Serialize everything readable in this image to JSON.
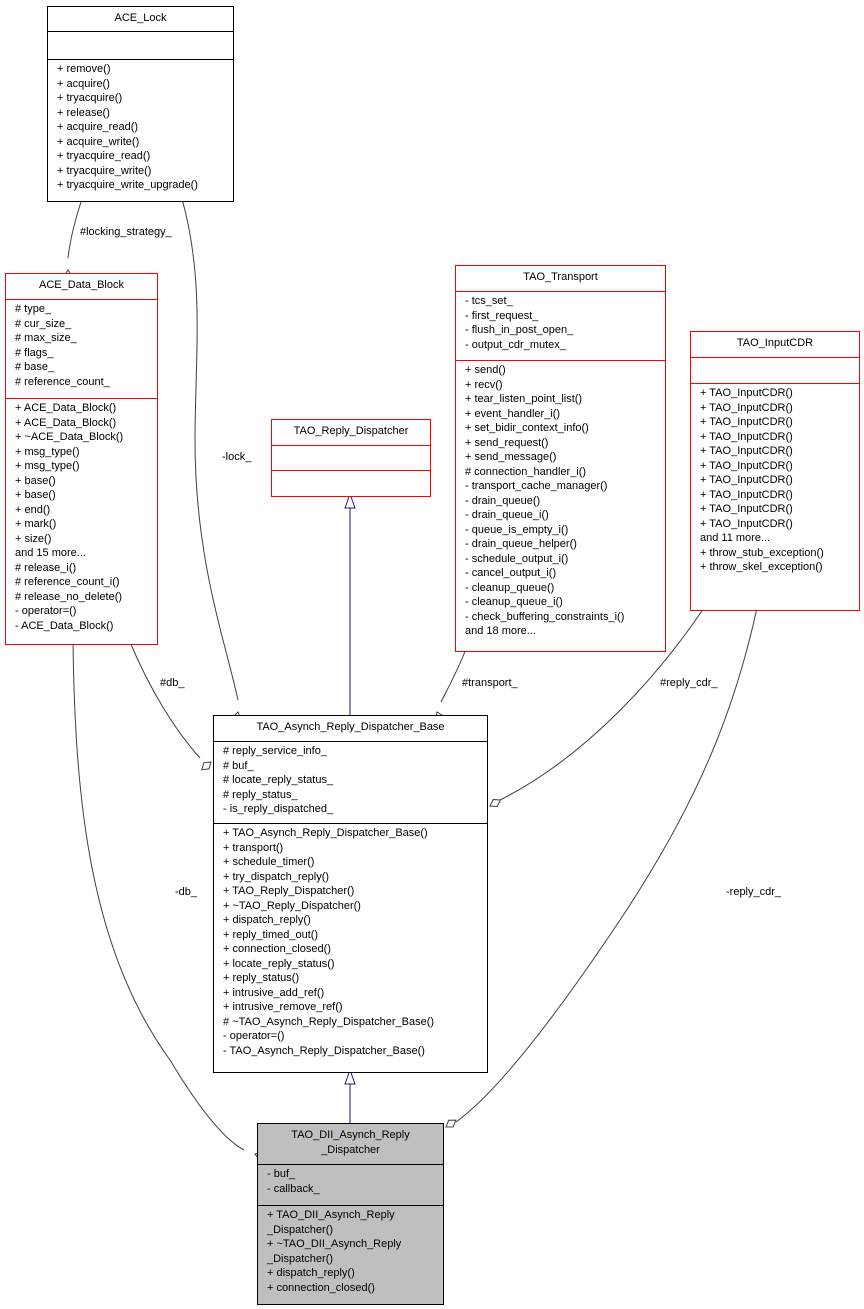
{
  "classes": [
    {
      "id": "ace_lock",
      "title": [
        "ACE_Lock"
      ],
      "border": "#000000",
      "attributes": [],
      "methods": [
        "+ remove()",
        "+ acquire()",
        "+ tryacquire()",
        "+ release()",
        "+ acquire_read()",
        "+ acquire_write()",
        "+ tryacquire_read()",
        "+ tryacquire_write()",
        "+ tryacquire_write_upgrade()"
      ]
    },
    {
      "id": "ace_data_block",
      "title": [
        "ACE_Data_Block"
      ],
      "border": "#ff0000",
      "attributes": [
        "# type_",
        "# cur_size_",
        "# max_size_",
        "# flags_",
        "# base_",
        "# reference_count_"
      ],
      "methods": [
        "+ ACE_Data_Block()",
        "+ ACE_Data_Block()",
        "+ ~ACE_Data_Block()",
        "+ msg_type()",
        "+ msg_type()",
        "+ base()",
        "+ base()",
        "+ end()",
        "+ mark()",
        "+ size()",
        "and 15 more...",
        "# release_i()",
        "# reference_count_i()",
        "# release_no_delete()",
        "- operator=()",
        "- ACE_Data_Block()"
      ]
    },
    {
      "id": "tao_reply_dispatcher",
      "title": [
        "TAO_Reply_Dispatcher"
      ],
      "border": "#ff0000",
      "attributes": [],
      "methods": []
    },
    {
      "id": "tao_transport",
      "title": [
        "TAO_Transport"
      ],
      "border": "#ff0000",
      "attributes": [
        "- tcs_set_",
        "- first_request_",
        "- flush_in_post_open_",
        "- output_cdr_mutex_"
      ],
      "methods": [
        "+ send()",
        "+ recv()",
        "+ tear_listen_point_list()",
        "+ event_handler_i()",
        "+ set_bidir_context_info()",
        "+ send_request()",
        "+ send_message()",
        "# connection_handler_i()",
        "- transport_cache_manager()",
        "- drain_queue()",
        "- drain_queue_i()",
        "- queue_is_empty_i()",
        "- drain_queue_helper()",
        "- schedule_output_i()",
        "- cancel_output_i()",
        "- cleanup_queue()",
        "- cleanup_queue_i()",
        "- check_buffering_constraints_i()",
        "and 18 more..."
      ]
    },
    {
      "id": "tao_inputcdr",
      "title": [
        "TAO_InputCDR"
      ],
      "border": "#ff0000",
      "attributes": [],
      "methods": [
        "+ TAO_InputCDR()",
        "+ TAO_InputCDR()",
        "+ TAO_InputCDR()",
        "+ TAO_InputCDR()",
        "+ TAO_InputCDR()",
        "+ TAO_InputCDR()",
        "+ TAO_InputCDR()",
        "+ TAO_InputCDR()",
        "+ TAO_InputCDR()",
        "+ TAO_InputCDR()",
        "and 11 more...",
        "+ throw_stub_exception()",
        "+ throw_skel_exception()"
      ]
    },
    {
      "id": "tao_asynch_reply_dispatcher_base",
      "title": [
        "TAO_Asynch_Reply_Dispatcher_Base"
      ],
      "border": "#000000",
      "attributes": [
        "# reply_service_info_",
        "# buf_",
        "# locate_reply_status_",
        "# reply_status_",
        "- is_reply_dispatched_"
      ],
      "methods": [
        "+ TAO_Asynch_Reply_Dispatcher_Base()",
        "+ transport()",
        "+ schedule_timer()",
        "+ try_dispatch_reply()",
        "+ TAO_Reply_Dispatcher()",
        "+ ~TAO_Reply_Dispatcher()",
        "+ dispatch_reply()",
        "+ reply_timed_out()",
        "+ connection_closed()",
        "+ locate_reply_status()",
        "+ reply_status()",
        "+ intrusive_add_ref()",
        "+ intrusive_remove_ref()",
        "# ~TAO_Asynch_Reply_Dispatcher_Base()",
        "- operator=()",
        "- TAO_Asynch_Reply_Dispatcher_Base()"
      ]
    },
    {
      "id": "tao_dii_asynch_reply_dispatcher",
      "title": [
        "TAO_DII_Asynch_Reply",
        "_Dispatcher"
      ],
      "border": "#000000",
      "fill": "#bfbfbf",
      "attributes": [
        "- buf_",
        "- callback_"
      ],
      "methods": [
        "+ TAO_DII_Asynch_Reply",
        "_Dispatcher()",
        "+ ~TAO_DII_Asynch_Reply",
        "_Dispatcher()",
        "+ dispatch_reply()",
        "+ connection_closed()"
      ]
    }
  ],
  "edges": [
    {
      "id": "locking-strategy",
      "type": "composition",
      "from": "ace_lock",
      "to": "ace_data_block",
      "label": "#locking_strategy_"
    },
    {
      "id": "lock",
      "type": "composition",
      "from": "ace_lock",
      "to": "tao_asynch_reply_dispatcher_base",
      "label": "-lock_"
    },
    {
      "id": "inherit-reply-dispatcher",
      "type": "inheritance",
      "from": "tao_reply_dispatcher",
      "to": "tao_asynch_reply_dispatcher_base",
      "label": ""
    },
    {
      "id": "db-base",
      "type": "composition",
      "from": "ace_data_block",
      "to": "tao_asynch_reply_dispatcher_base",
      "label": "#db_"
    },
    {
      "id": "transport",
      "type": "composition",
      "from": "tao_transport",
      "to": "tao_asynch_reply_dispatcher_base",
      "label": "#transport_"
    },
    {
      "id": "reply-cdr-base",
      "type": "composition",
      "from": "tao_inputcdr",
      "to": "tao_asynch_reply_dispatcher_base",
      "label": "#reply_cdr_"
    },
    {
      "id": "db-dii",
      "type": "composition",
      "from": "ace_data_block",
      "to": "tao_dii_asynch_reply_dispatcher",
      "label": "-db_"
    },
    {
      "id": "reply-cdr-dii",
      "type": "composition",
      "from": "tao_inputcdr",
      "to": "tao_dii_asynch_reply_dispatcher",
      "label": "-reply_cdr_"
    },
    {
      "id": "inherit-base",
      "type": "inheritance",
      "from": "tao_asynch_reply_dispatcher_base",
      "to": "tao_dii_asynch_reply_dispatcher",
      "label": ""
    }
  ],
  "colors": {
    "class_border_documented": "#ff0000",
    "class_border_plain": "#000000",
    "focus_fill": "#bfbfbf",
    "inheritance_edge": "#191970",
    "composition_edge": "#404040"
  }
}
